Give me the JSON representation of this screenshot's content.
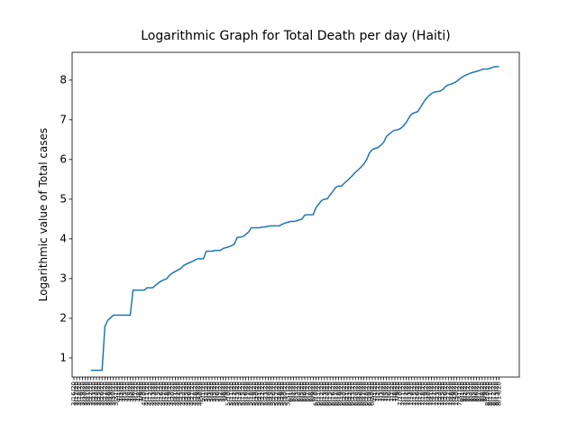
{
  "chart_data": {
    "type": "line",
    "title": "Logarithmic Graph for Total Death per day (Haiti)",
    "y_label": "Logarithmic value of Total cases",
    "categories": [
      "3/16/20",
      "3/17/20",
      "3/18/20",
      "3/19/20",
      "3/20/20",
      "3/21/20",
      "3/22/20",
      "3/23/20",
      "3/24/20",
      "3/25/20",
      "3/26/20",
      "3/27/20",
      "3/28/20",
      "3/29/20",
      "3/30/20",
      "3/31/20",
      "4/1/20",
      "4/2/20",
      "4/3/20",
      "4/4/20",
      "4/5/20",
      "4/6/20",
      "4/7/20",
      "4/8/20",
      "4/9/20",
      "4/10/20",
      "4/11/20",
      "4/12/20",
      "4/13/20",
      "4/14/20",
      "4/15/20",
      "4/16/20",
      "4/17/20",
      "4/18/20",
      "4/19/20",
      "4/20/20",
      "4/21/20",
      "4/22/20",
      "4/23/20",
      "4/24/20",
      "4/25/20",
      "4/26/20",
      "4/27/20",
      "4/28/20",
      "4/29/20",
      "4/30/20",
      "5/1/20",
      "5/2/20",
      "5/3/20",
      "5/4/20",
      "5/5/20",
      "5/6/20",
      "5/7/20",
      "5/8/20",
      "5/9/20",
      "5/10/20",
      "5/11/20",
      "5/12/20",
      "5/13/20",
      "5/14/20",
      "5/15/20",
      "5/16/20",
      "5/17/20",
      "5/18/20",
      "5/19/20",
      "5/20/20",
      "5/21/20",
      "5/22/20",
      "5/23/20",
      "5/24/20",
      "5/25/20",
      "5/26/20",
      "5/27/20",
      "5/28/20",
      "5/29/20",
      "5/30/20",
      "5/31/20",
      "6/1/20",
      "6/2/20",
      "6/3/20",
      "6/4/20",
      "6/5/20",
      "6/6/20",
      "6/7/20",
      "6/8/20",
      "6/9/20",
      "6/10/20",
      "6/11/20",
      "6/12/20",
      "6/13/20",
      "6/14/20",
      "6/15/20",
      "6/16/20",
      "6/17/20",
      "6/18/20",
      "6/19/20",
      "6/20/20",
      "6/21/20",
      "6/22/20",
      "6/23/20",
      "6/24/20",
      "6/25/20",
      "6/26/20",
      "6/27/20",
      "6/28/20",
      "6/29/20",
      "6/30/20",
      "7/1/20",
      "7/2/20",
      "7/3/20",
      "7/4/20",
      "7/5/20",
      "7/6/20",
      "7/7/20",
      "7/8/20",
      "7/9/20",
      "7/10/20",
      "7/11/20",
      "7/12/20",
      "7/13/20",
      "7/14/20",
      "7/15/20",
      "7/16/20",
      "7/17/20",
      "7/18/20",
      "7/19/20",
      "7/20/20",
      "7/21/20",
      "7/22/20",
      "7/23/20",
      "7/24/20",
      "7/25/20",
      "7/26/20",
      "7/27/20",
      "7/28/20",
      "7/29/20",
      "7/30/20",
      "7/31/20",
      "8/1/20",
      "8/2/20",
      "8/3/20",
      "8/4/20",
      "8/5/20",
      "8/6/20",
      "8/7/20",
      "8/8/20",
      "8/9/20",
      "8/10/20",
      "8/11/20",
      "8/12/20",
      "8/13/20",
      "8/14/20"
    ],
    "values": [
      null,
      null,
      null,
      null,
      null,
      null,
      0.69,
      0.69,
      0.69,
      0.69,
      0.69,
      1.79,
      1.95,
      2.01,
      2.08,
      2.08,
      2.08,
      2.08,
      2.08,
      2.08,
      2.08,
      2.71,
      2.71,
      2.71,
      2.71,
      2.71,
      2.77,
      2.77,
      2.77,
      2.83,
      2.89,
      2.94,
      2.97,
      3.0,
      3.09,
      3.14,
      3.18,
      3.22,
      3.26,
      3.33,
      3.37,
      3.4,
      3.43,
      3.47,
      3.5,
      3.5,
      3.5,
      3.69,
      3.69,
      3.69,
      3.71,
      3.71,
      3.71,
      3.76,
      3.78,
      3.8,
      3.83,
      3.87,
      4.04,
      4.04,
      4.06,
      4.11,
      4.17,
      4.28,
      4.28,
      4.28,
      4.28,
      4.3,
      4.3,
      4.32,
      4.33,
      4.33,
      4.33,
      4.33,
      4.37,
      4.4,
      4.42,
      4.44,
      4.44,
      4.45,
      4.48,
      4.5,
      4.6,
      4.61,
      4.61,
      4.61,
      4.79,
      4.88,
      4.97,
      5.0,
      5.01,
      5.11,
      5.2,
      5.3,
      5.33,
      5.33,
      5.4,
      5.46,
      5.53,
      5.6,
      5.68,
      5.74,
      5.81,
      5.89,
      6.0,
      6.17,
      6.25,
      6.28,
      6.3,
      6.36,
      6.43,
      6.58,
      6.64,
      6.7,
      6.74,
      6.75,
      6.78,
      6.84,
      6.93,
      7.05,
      7.15,
      7.18,
      7.2,
      7.3,
      7.42,
      7.52,
      7.6,
      7.66,
      7.7,
      7.71,
      7.72,
      7.76,
      7.84,
      7.88,
      7.9,
      7.93,
      7.97,
      8.03,
      8.08,
      8.12,
      8.15,
      8.18,
      8.2,
      8.22,
      8.24,
      8.27,
      8.28,
      8.28,
      8.3,
      8.33,
      8.34,
      8.34
    ],
    "color": "#1f77b4",
    "ylim": [
      0.52,
      8.7
    ],
    "yticks": [
      1,
      2,
      3,
      4,
      5,
      6,
      7,
      8
    ],
    "grid": false
  }
}
